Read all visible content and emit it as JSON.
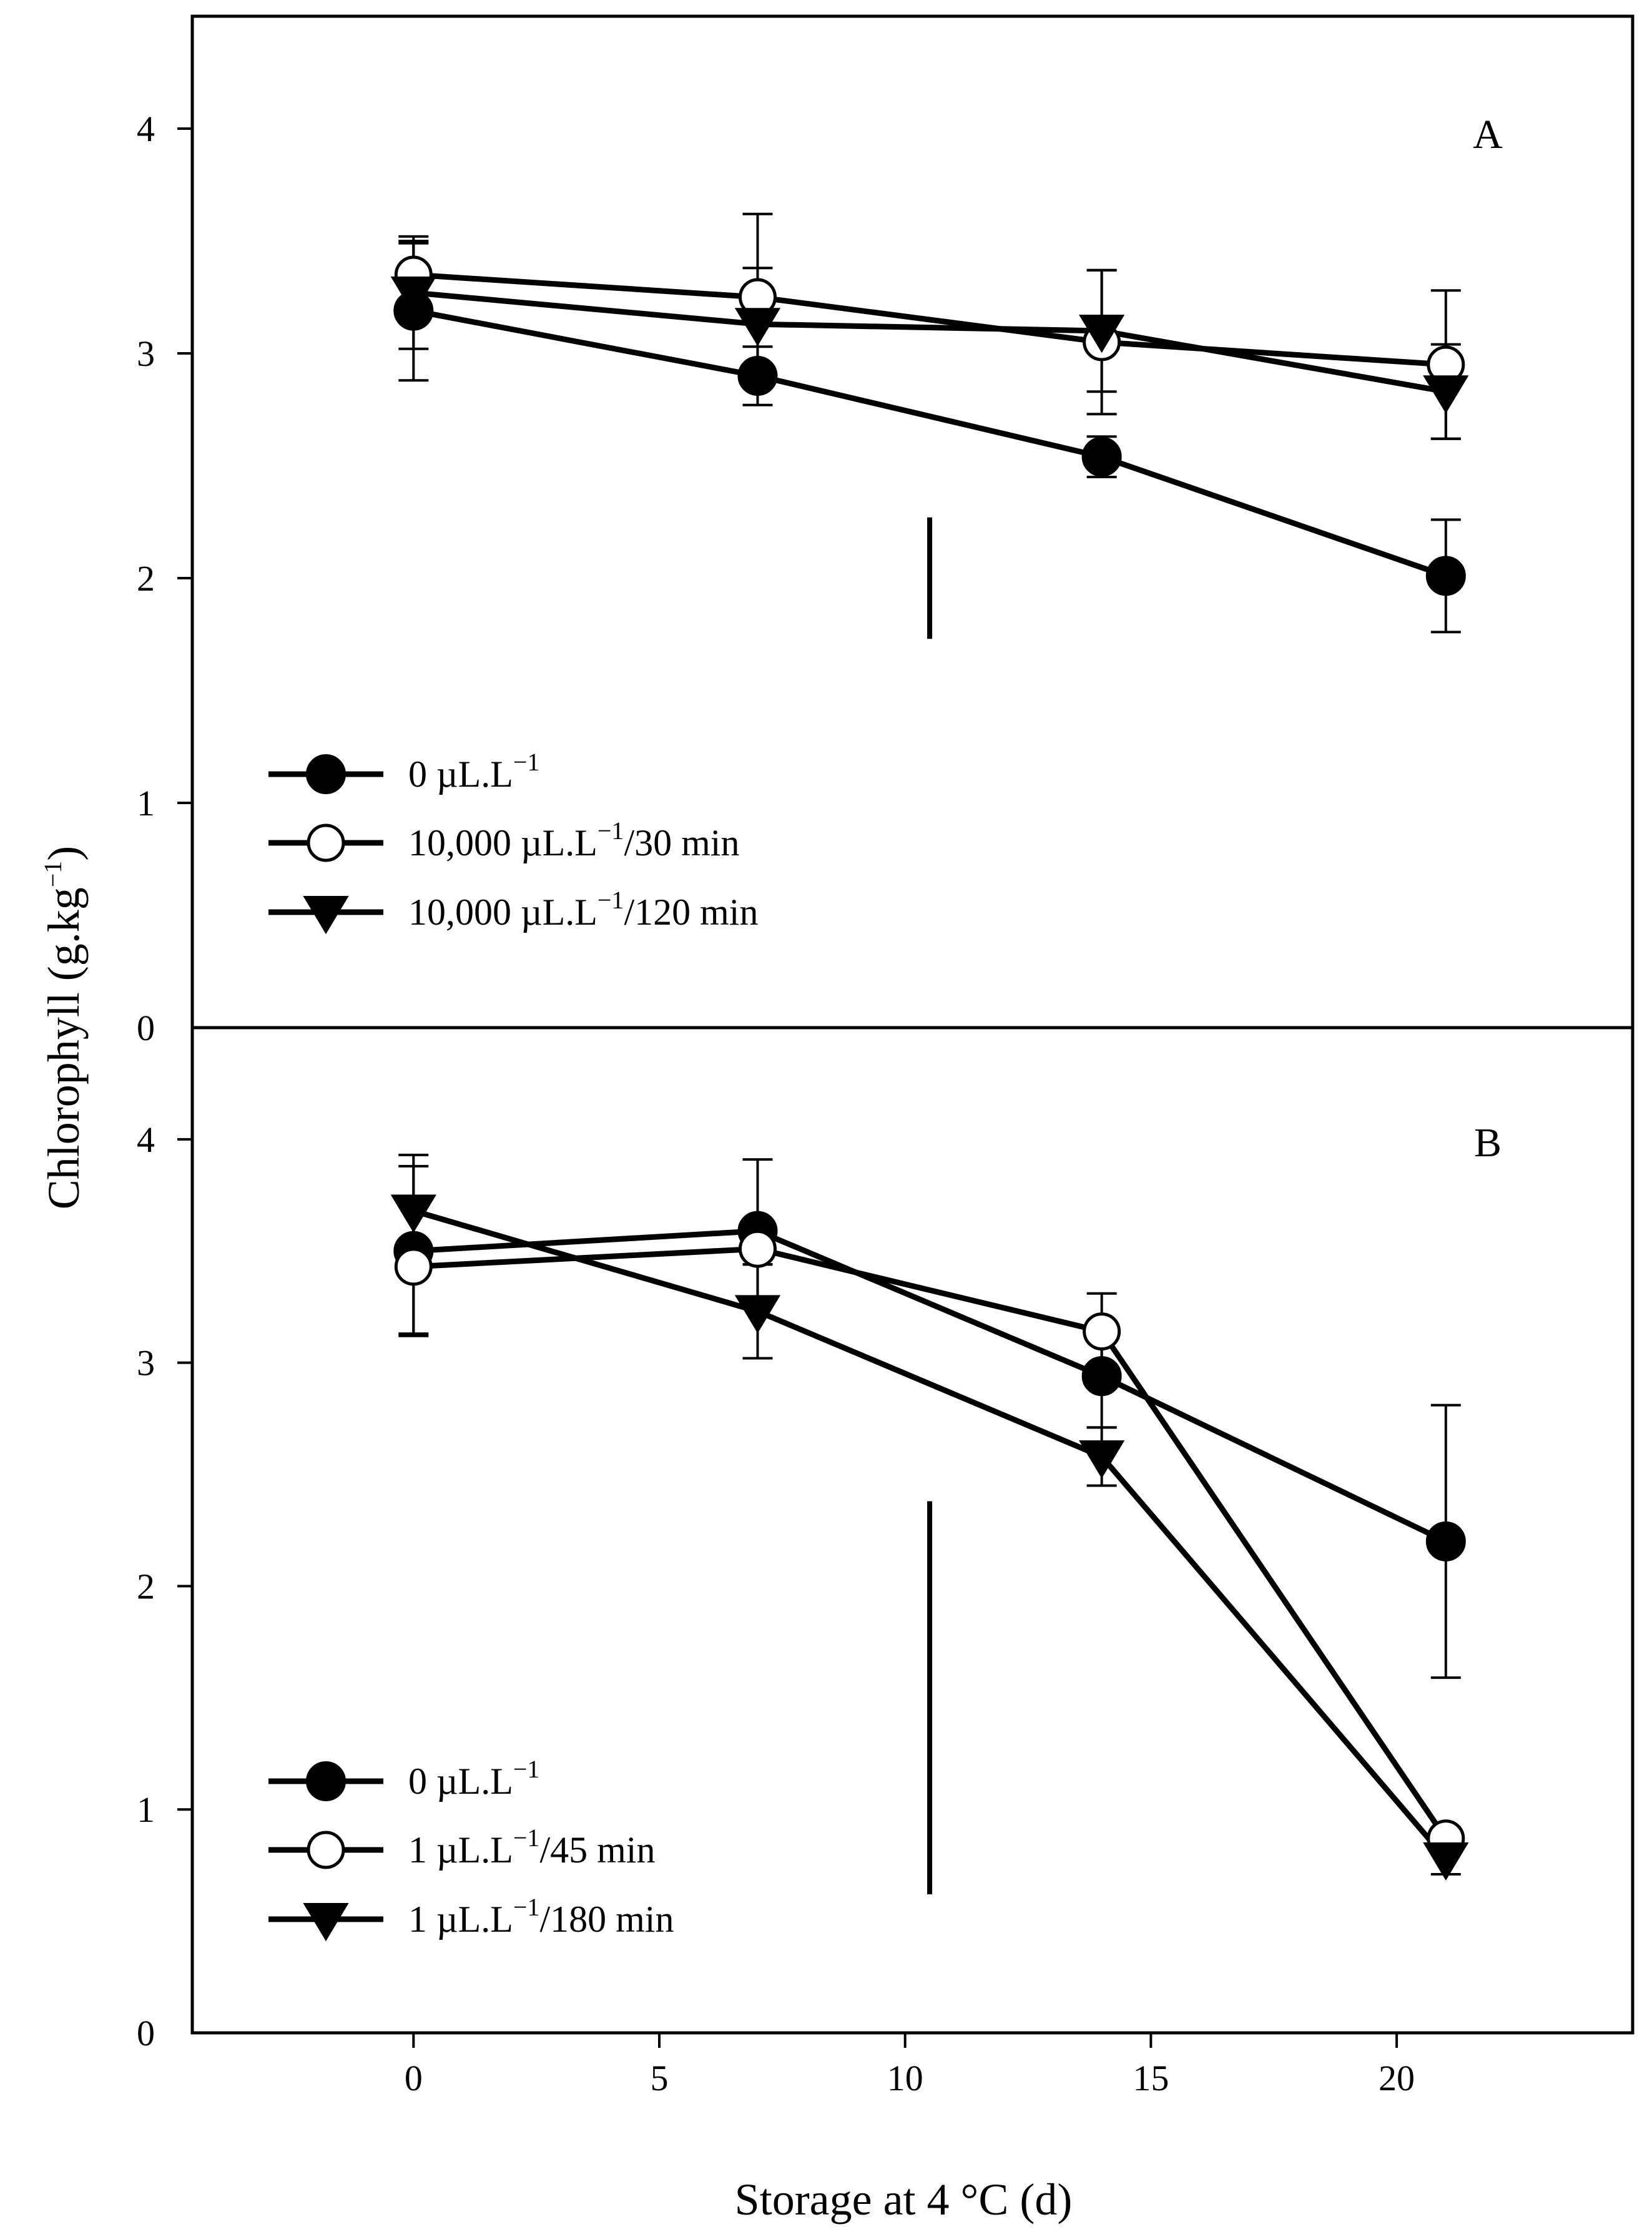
{
  "chart_data": [
    {
      "type": "line",
      "panel_label": "A",
      "x": [
        0,
        7,
        14,
        21
      ],
      "xlim": [
        -4.5,
        24.8
      ],
      "ylim": [
        0,
        4.5
      ],
      "y_ticks": [
        "0",
        "1",
        "2",
        "3",
        "4"
      ],
      "grid": false,
      "legend_position": "lower-left",
      "lsd_bar": {
        "x": 10.5,
        "y_low": 1.73,
        "y_high": 2.27
      },
      "series": [
        {
          "name": "0 µL.L⁻¹",
          "marker": "filled-circle",
          "legend_main": "0 µL.L",
          "legend_sup": "−1",
          "legend_suffix": "",
          "values": [
            3.19,
            2.9,
            2.54,
            2.01
          ],
          "errors": [
            0.31,
            0.13,
            0.09,
            0.25
          ]
        },
        {
          "name": "10,000 µL.L⁻¹/30 min",
          "marker": "open-circle",
          "legend_main": "10,000 µL.L",
          "legend_sup": "−1",
          "legend_suffix": "/30 min",
          "values": [
            3.35,
            3.25,
            3.05,
            2.95
          ],
          "errors": [
            0.14,
            0.37,
            0.32,
            0.33
          ]
        },
        {
          "name": "10,000 µL.L⁻¹/120 min",
          "marker": "filled-triangle-down",
          "legend_main": "10,000 µL.L",
          "legend_sup": "−1",
          "legend_suffix": "/120 min",
          "values": [
            3.27,
            3.13,
            3.1,
            2.83
          ],
          "errors": [
            0.25,
            0.25,
            0.27,
            0.21
          ]
        }
      ]
    },
    {
      "type": "line",
      "panel_label": "B",
      "x": [
        0,
        7,
        14,
        21
      ],
      "x_ticks": [
        "0",
        "5",
        "10",
        "15",
        "20"
      ],
      "xlim": [
        -4.5,
        24.8
      ],
      "ylim": [
        0,
        4.5
      ],
      "y_ticks": [
        "0",
        "1",
        "2",
        "3",
        "4"
      ],
      "grid": false,
      "legend_position": "lower-left",
      "lsd_bar": {
        "x": 10.5,
        "y_low": 0.62,
        "y_high": 2.38
      },
      "series": [
        {
          "name": "0 µL.L⁻¹",
          "marker": "filled-circle",
          "legend_main": "0 µL.L",
          "legend_sup": "−1",
          "legend_suffix": "",
          "values": [
            3.5,
            3.59,
            2.94,
            2.2
          ],
          "errors": [
            0.38,
            0.32,
            0.23,
            0.61
          ]
        },
        {
          "name": "1 µL.L⁻¹/45 min",
          "marker": "open-circle",
          "legend_main": "1 µL.L",
          "legend_sup": "−1",
          "legend_suffix": "/45 min",
          "values": [
            3.43,
            3.51,
            3.14,
            0.87
          ],
          "errors": [
            0.3,
            0.07,
            0.17,
            0.05
          ]
        },
        {
          "name": "1 µL.L⁻¹/180 min",
          "marker": "filled-triangle-down",
          "legend_main": "1 µL.L",
          "legend_sup": "−1",
          "legend_suffix": "/180 min",
          "values": [
            3.68,
            3.23,
            2.58,
            0.78
          ],
          "errors": [
            0.25,
            0.21,
            0.13,
            0.07
          ]
        }
      ]
    }
  ],
  "axes": {
    "xlabel": "Storage at 4 °C (d)",
    "ylabel_main": "Chlorophyll (g.kg",
    "ylabel_sup": "−1",
    "ylabel_close": ")"
  }
}
